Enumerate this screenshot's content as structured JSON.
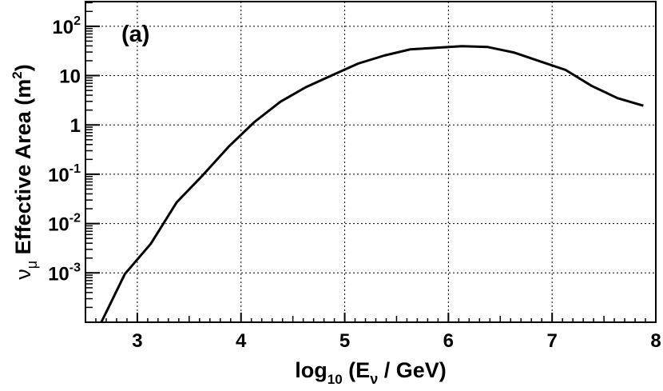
{
  "chart_data": {
    "type": "line",
    "panel_label": "(a)",
    "xlabel": {
      "main": "log",
      "sub": "10",
      "open": " (E",
      "var_sub": "ν",
      "unit": " / GeV)"
    },
    "ylabel": {
      "sym": "ν",
      "sym_sub": "μ",
      "text": " Effective Area (m",
      "sup": "2",
      "close": ")"
    },
    "xlim": [
      2.5,
      8.0
    ],
    "ylim_log10": [
      -4.0,
      2.5
    ],
    "y_scale": "log",
    "grid": true,
    "x_ticks": [
      {
        "value": 3,
        "label": "3"
      },
      {
        "value": 4,
        "label": "4"
      },
      {
        "value": 5,
        "label": "5"
      },
      {
        "value": 6,
        "label": "6"
      },
      {
        "value": 7,
        "label": "7"
      },
      {
        "value": 8,
        "label": "8"
      }
    ],
    "y_ticks": [
      {
        "exp": 2,
        "base": "10",
        "sup": "2"
      },
      {
        "exp": 1,
        "base": "10",
        "sup": ""
      },
      {
        "exp": 0,
        "base": "1",
        "sup": ""
      },
      {
        "exp": -1,
        "base": "10",
        "sup": "-1"
      },
      {
        "exp": -2,
        "base": "10",
        "sup": "-2"
      },
      {
        "exp": -3,
        "base": "10",
        "sup": "-3"
      }
    ],
    "series": [
      {
        "color": "#000000",
        "x": [
          2.63,
          2.88,
          3.13,
          3.38,
          3.63,
          3.88,
          4.13,
          4.38,
          4.63,
          4.88,
          5.13,
          5.38,
          5.63,
          5.88,
          6.13,
          6.38,
          6.63,
          6.88,
          7.13,
          7.38,
          7.63,
          7.88
        ],
        "y": [
          8e-05,
          0.00095,
          0.0039,
          0.027,
          0.095,
          0.36,
          1.15,
          2.95,
          5.9,
          10.2,
          17.5,
          25.5,
          34.0,
          36.5,
          39.5,
          38.0,
          29.5,
          19.5,
          13.0,
          6.2,
          3.5,
          2.45
        ]
      }
    ]
  }
}
